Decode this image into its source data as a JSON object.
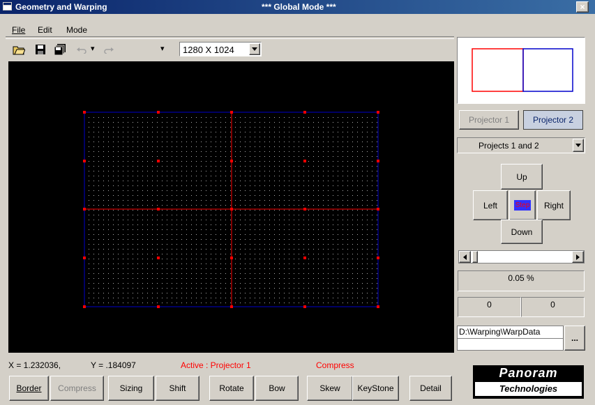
{
  "window": {
    "title": "Geometry and Warping",
    "mode": "*** Global Mode ***",
    "close_label": "×"
  },
  "menu": {
    "items": [
      "File",
      "Edit",
      "Mode"
    ]
  },
  "toolbar": {
    "resolution": "1280 X 1024",
    "undo_arrow": "▾",
    "redo_arrow": "▾"
  },
  "status": {
    "x": "X = 1.232036,",
    "y": "Y = .184097",
    "active": "Active : Projector 1",
    "operation": "Compress"
  },
  "bottom_buttons": [
    "Border",
    "Compress",
    "Sizing",
    "Shift",
    "Rotate",
    "Bow",
    "Skew",
    "KeyStone",
    "Detail"
  ],
  "right_panel": {
    "projector1": "Projector 1",
    "projector2": "Projector 2",
    "projects": "Projects 1 and 2",
    "up": "Up",
    "left": "Left",
    "center": "Step",
    "right": "Right",
    "down": "Down",
    "percent": "0.05 %",
    "value_a": "0",
    "value_b": "0",
    "path": "D:\\Warping\\WarpData",
    "browse": "..."
  },
  "logo": {
    "line1": "Panoram",
    "line2": "Technologies"
  },
  "colors": {
    "grid_blue": "#0000cc",
    "grid_red": "#ff0000",
    "status_red": "#ff0000",
    "title_blue": "#0a246a"
  }
}
